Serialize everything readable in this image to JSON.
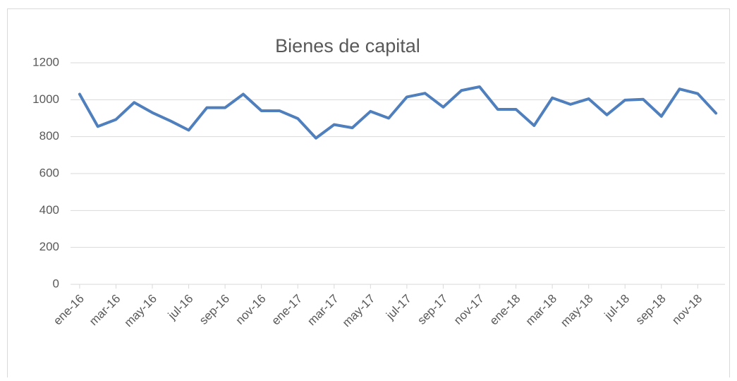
{
  "chart_data": {
    "type": "line",
    "title": "Bienes de capital",
    "categories": [
      "ene-16",
      null,
      "mar-16",
      null,
      "may-16",
      null,
      "jul-16",
      null,
      "sep-16",
      null,
      "nov-16",
      null,
      "ene-17",
      null,
      "mar-17",
      null,
      "may-17",
      null,
      "jul-17",
      null,
      "sep-17",
      null,
      "nov-17",
      null,
      "ene-18",
      null,
      "mar-18",
      null,
      "may-18",
      null,
      "jul-18",
      null,
      "sep-18",
      null,
      "nov-18",
      null
    ],
    "series": [
      {
        "name": "Bienes de capital",
        "color": "#4f7fbd",
        "values": [
          1030,
          855,
          893,
          985,
          930,
          885,
          835,
          957,
          957,
          1030,
          940,
          940,
          898,
          792,
          865,
          848,
          937,
          900,
          1015,
          1035,
          960,
          1050,
          1070,
          948,
          948,
          860,
          1010,
          975,
          1005,
          918,
          998,
          1002,
          910,
          1058,
          1033,
          927
        ]
      }
    ],
    "ylim": [
      0,
      1200
    ],
    "yticks": [
      0,
      200,
      400,
      600,
      800,
      1000,
      1200
    ],
    "grid": true
  }
}
